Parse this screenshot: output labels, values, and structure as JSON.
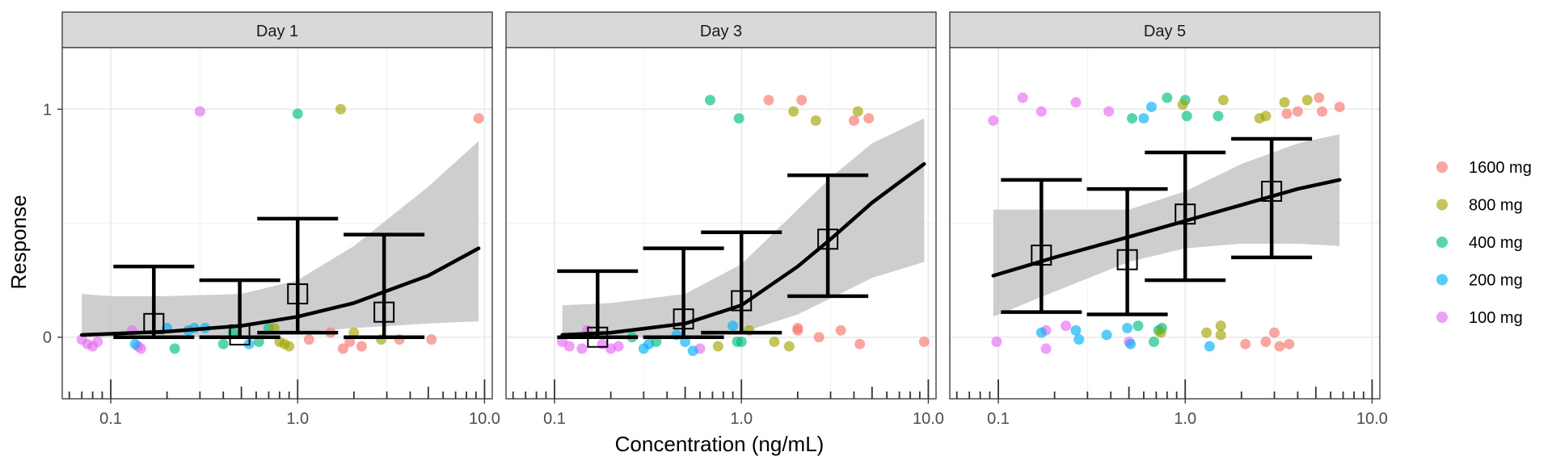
{
  "chart_data": {
    "type": "scatter",
    "xlabel": "Concentration (ng/mL)",
    "ylabel": "Response",
    "x_scale": "log10",
    "xlim": [
      0.055,
      11
    ],
    "ylim": [
      -0.27,
      1.27
    ],
    "x_ticks": [
      {
        "value": 0.1,
        "label": "0.1"
      },
      {
        "value": 1,
        "label": "1.0"
      },
      {
        "value": 10,
        "label": "10.0"
      }
    ],
    "y_ticks": [
      {
        "value": 0,
        "label": "0"
      },
      {
        "value": 1,
        "label": "1"
      }
    ],
    "grid": true,
    "legend_position": "right",
    "legend": [
      {
        "name": "1600 mg",
        "color": "#F8766D"
      },
      {
        "name": "800 mg",
        "color": "#A3A500"
      },
      {
        "name": "400 mg",
        "color": "#00BF7D"
      },
      {
        "name": "200 mg",
        "color": "#00B0F6"
      },
      {
        "name": "100 mg",
        "color": "#E76BF3"
      }
    ],
    "panels": [
      {
        "title": "Day 1",
        "points": [
          {
            "x": 0.07,
            "y": -0.01,
            "dose": "100 mg"
          },
          {
            "x": 0.075,
            "y": -0.03,
            "dose": "100 mg"
          },
          {
            "x": 0.08,
            "y": -0.04,
            "dose": "100 mg"
          },
          {
            "x": 0.085,
            "y": -0.02,
            "dose": "100 mg"
          },
          {
            "x": 0.13,
            "y": 0.03,
            "dose": "100 mg"
          },
          {
            "x": 0.14,
            "y": -0.04,
            "dose": "100 mg"
          },
          {
            "x": 0.145,
            "y": -0.05,
            "dose": "100 mg"
          },
          {
            "x": 0.3,
            "y": 0.99,
            "dose": "100 mg"
          },
          {
            "x": 0.135,
            "y": -0.03,
            "dose": "200 mg"
          },
          {
            "x": 0.2,
            "y": 0.04,
            "dose": "200 mg"
          },
          {
            "x": 0.26,
            "y": 0.03,
            "dose": "200 mg"
          },
          {
            "x": 0.28,
            "y": 0.04,
            "dose": "200 mg"
          },
          {
            "x": 0.32,
            "y": 0.04,
            "dose": "200 mg"
          },
          {
            "x": 0.55,
            "y": -0.03,
            "dose": "200 mg"
          },
          {
            "x": 0.22,
            "y": -0.05,
            "dose": "400 mg"
          },
          {
            "x": 0.4,
            "y": -0.03,
            "dose": "400 mg"
          },
          {
            "x": 0.45,
            "y": 0.02,
            "dose": "400 mg"
          },
          {
            "x": 0.62,
            "y": -0.02,
            "dose": "400 mg"
          },
          {
            "x": 0.7,
            "y": 0.04,
            "dose": "400 mg"
          },
          {
            "x": 1.0,
            "y": 0.98,
            "dose": "400 mg"
          },
          {
            "x": 0.75,
            "y": 0.04,
            "dose": "800 mg"
          },
          {
            "x": 0.8,
            "y": -0.02,
            "dose": "800 mg"
          },
          {
            "x": 0.85,
            "y": -0.03,
            "dose": "800 mg"
          },
          {
            "x": 0.9,
            "y": -0.04,
            "dose": "800 mg"
          },
          {
            "x": 1.7,
            "y": 1.0,
            "dose": "800 mg"
          },
          {
            "x": 2.0,
            "y": 0.02,
            "dose": "800 mg"
          },
          {
            "x": 2.8,
            "y": -0.01,
            "dose": "800 mg"
          },
          {
            "x": 1.5,
            "y": 0.02,
            "dose": "1600 mg"
          },
          {
            "x": 1.75,
            "y": -0.05,
            "dose": "1600 mg"
          },
          {
            "x": 1.9,
            "y": -0.02,
            "dose": "1600 mg"
          },
          {
            "x": 2.2,
            "y": -0.04,
            "dose": "1600 mg"
          },
          {
            "x": 1.15,
            "y": -0.01,
            "dose": "1600 mg"
          },
          {
            "x": 3.5,
            "y": -0.01,
            "dose": "1600 mg"
          },
          {
            "x": 5.2,
            "y": -0.01,
            "dose": "1600 mg"
          },
          {
            "x": 9.3,
            "y": 0.96,
            "dose": "1600 mg"
          }
        ],
        "summary": [
          {
            "x": 0.17,
            "mean": 0.06,
            "lower": 0.0,
            "upper": 0.31
          },
          {
            "x": 0.49,
            "mean": 0.01,
            "lower": 0.0,
            "upper": 0.25
          },
          {
            "x": 1.0,
            "mean": 0.19,
            "lower": 0.02,
            "upper": 0.52
          },
          {
            "x": 2.9,
            "mean": 0.11,
            "lower": 0.0,
            "upper": 0.45
          }
        ],
        "fit": {
          "x": [
            0.07,
            0.1,
            0.2,
            0.5,
            1,
            2,
            5,
            9.3
          ],
          "y": [
            0.01,
            0.015,
            0.025,
            0.05,
            0.09,
            0.15,
            0.27,
            0.39
          ],
          "lower": [
            0.0,
            0.0,
            0.0,
            0.0,
            0.02,
            0.04,
            0.06,
            0.07
          ],
          "upper": [
            0.19,
            0.18,
            0.18,
            0.19,
            0.25,
            0.4,
            0.66,
            0.86
          ]
        }
      },
      {
        "title": "Day 3",
        "points": [
          {
            "x": 0.11,
            "y": -0.02,
            "dose": "100 mg"
          },
          {
            "x": 0.12,
            "y": -0.04,
            "dose": "100 mg"
          },
          {
            "x": 0.14,
            "y": -0.05,
            "dose": "100 mg"
          },
          {
            "x": 0.15,
            "y": 0.03,
            "dose": "100 mg"
          },
          {
            "x": 0.18,
            "y": -0.03,
            "dose": "100 mg"
          },
          {
            "x": 0.2,
            "y": -0.05,
            "dose": "100 mg"
          },
          {
            "x": 0.22,
            "y": -0.04,
            "dose": "100 mg"
          },
          {
            "x": 0.6,
            "y": -0.05,
            "dose": "100 mg"
          },
          {
            "x": 0.3,
            "y": -0.05,
            "dose": "200 mg"
          },
          {
            "x": 0.32,
            "y": -0.03,
            "dose": "200 mg"
          },
          {
            "x": 0.45,
            "y": 0.01,
            "dose": "200 mg"
          },
          {
            "x": 0.5,
            "y": -0.02,
            "dose": "200 mg"
          },
          {
            "x": 0.55,
            "y": -0.06,
            "dose": "200 mg"
          },
          {
            "x": 0.9,
            "y": 0.05,
            "dose": "200 mg"
          },
          {
            "x": 0.26,
            "y": 0.0,
            "dose": "400 mg"
          },
          {
            "x": 0.35,
            "y": -0.02,
            "dose": "400 mg"
          },
          {
            "x": 0.68,
            "y": 1.04,
            "dose": "400 mg"
          },
          {
            "x": 0.95,
            "y": -0.02,
            "dose": "400 mg"
          },
          {
            "x": 1.0,
            "y": -0.02,
            "dose": "400 mg"
          },
          {
            "x": 0.97,
            "y": 0.96,
            "dose": "400 mg"
          },
          {
            "x": 0.75,
            "y": -0.04,
            "dose": "800 mg"
          },
          {
            "x": 1.1,
            "y": 0.03,
            "dose": "800 mg"
          },
          {
            "x": 1.5,
            "y": -0.02,
            "dose": "800 mg"
          },
          {
            "x": 1.8,
            "y": -0.04,
            "dose": "800 mg"
          },
          {
            "x": 1.9,
            "y": 0.99,
            "dose": "800 mg"
          },
          {
            "x": 2.5,
            "y": 0.95,
            "dose": "800 mg"
          },
          {
            "x": 4.2,
            "y": 0.99,
            "dose": "800 mg"
          },
          {
            "x": 1.4,
            "y": 1.04,
            "dose": "1600 mg"
          },
          {
            "x": 2.1,
            "y": 1.04,
            "dose": "1600 mg"
          },
          {
            "x": 2.0,
            "y": 0.04,
            "dose": "1600 mg"
          },
          {
            "x": 2.0,
            "y": 0.03,
            "dose": "1600 mg"
          },
          {
            "x": 2.6,
            "y": 0.0,
            "dose": "1600 mg"
          },
          {
            "x": 3.4,
            "y": 0.03,
            "dose": "1600 mg"
          },
          {
            "x": 4.0,
            "y": 0.95,
            "dose": "1600 mg"
          },
          {
            "x": 4.8,
            "y": 0.96,
            "dose": "1600 mg"
          },
          {
            "x": 4.3,
            "y": -0.03,
            "dose": "1600 mg"
          },
          {
            "x": 9.5,
            "y": -0.02,
            "dose": "1600 mg"
          }
        ],
        "summary": [
          {
            "x": 0.17,
            "mean": 0.0,
            "lower": 0.0,
            "upper": 0.29
          },
          {
            "x": 0.49,
            "mean": 0.08,
            "lower": 0.0,
            "upper": 0.39
          },
          {
            "x": 1.0,
            "mean": 0.16,
            "lower": 0.02,
            "upper": 0.46
          },
          {
            "x": 2.9,
            "mean": 0.43,
            "lower": 0.18,
            "upper": 0.71
          }
        ],
        "fit": {
          "x": [
            0.11,
            0.2,
            0.5,
            1,
            2,
            3,
            5,
            9.5
          ],
          "y": [
            0.01,
            0.02,
            0.06,
            0.14,
            0.31,
            0.43,
            0.59,
            0.76
          ],
          "lower": [
            0.0,
            0.0,
            0.0,
            0.02,
            0.1,
            0.17,
            0.26,
            0.33
          ],
          "upper": [
            0.14,
            0.15,
            0.19,
            0.32,
            0.56,
            0.7,
            0.85,
            0.96
          ]
        }
      },
      {
        "title": "Day 5",
        "points": [
          {
            "x": 0.094,
            "y": 0.95,
            "dose": "100 mg"
          },
          {
            "x": 0.135,
            "y": 1.05,
            "dose": "100 mg"
          },
          {
            "x": 0.17,
            "y": 0.99,
            "dose": "100 mg"
          },
          {
            "x": 0.26,
            "y": 1.03,
            "dose": "100 mg"
          },
          {
            "x": 0.39,
            "y": 0.99,
            "dose": "100 mg"
          },
          {
            "x": 0.098,
            "y": -0.02,
            "dose": "100 mg"
          },
          {
            "x": 0.18,
            "y": 0.03,
            "dose": "100 mg"
          },
          {
            "x": 0.18,
            "y": -0.05,
            "dose": "100 mg"
          },
          {
            "x": 0.23,
            "y": 0.05,
            "dose": "100 mg"
          },
          {
            "x": 0.5,
            "y": -0.02,
            "dose": "100 mg"
          },
          {
            "x": 0.17,
            "y": 0.02,
            "dose": "200 mg"
          },
          {
            "x": 0.26,
            "y": 0.03,
            "dose": "200 mg"
          },
          {
            "x": 0.27,
            "y": -0.01,
            "dose": "200 mg"
          },
          {
            "x": 0.38,
            "y": 0.01,
            "dose": "200 mg"
          },
          {
            "x": 0.49,
            "y": 0.04,
            "dose": "200 mg"
          },
          {
            "x": 0.51,
            "y": -0.03,
            "dose": "200 mg"
          },
          {
            "x": 0.6,
            "y": 0.96,
            "dose": "200 mg"
          },
          {
            "x": 0.66,
            "y": 1.01,
            "dose": "200 mg"
          },
          {
            "x": 1.35,
            "y": -0.04,
            "dose": "200 mg"
          },
          {
            "x": 0.52,
            "y": 0.96,
            "dose": "400 mg"
          },
          {
            "x": 0.56,
            "y": 0.05,
            "dose": "400 mg"
          },
          {
            "x": 0.68,
            "y": -0.02,
            "dose": "400 mg"
          },
          {
            "x": 0.72,
            "y": 0.03,
            "dose": "400 mg"
          },
          {
            "x": 0.75,
            "y": 0.04,
            "dose": "400 mg"
          },
          {
            "x": 0.8,
            "y": 1.05,
            "dose": "400 mg"
          },
          {
            "x": 1.0,
            "y": 1.04,
            "dose": "400 mg"
          },
          {
            "x": 1.02,
            "y": 0.97,
            "dose": "400 mg"
          },
          {
            "x": 1.5,
            "y": 0.97,
            "dose": "400 mg"
          },
          {
            "x": 0.74,
            "y": 0.02,
            "dose": "800 mg"
          },
          {
            "x": 0.97,
            "y": 1.02,
            "dose": "800 mg"
          },
          {
            "x": 1.3,
            "y": 0.02,
            "dose": "800 mg"
          },
          {
            "x": 1.55,
            "y": 0.05,
            "dose": "800 mg"
          },
          {
            "x": 1.6,
            "y": 1.04,
            "dose": "800 mg"
          },
          {
            "x": 1.55,
            "y": 0.01,
            "dose": "800 mg"
          },
          {
            "x": 2.5,
            "y": 0.96,
            "dose": "800 mg"
          },
          {
            "x": 2.7,
            "y": 0.97,
            "dose": "800 mg"
          },
          {
            "x": 3.4,
            "y": 1.03,
            "dose": "800 mg"
          },
          {
            "x": 4.5,
            "y": 1.04,
            "dose": "800 mg"
          },
          {
            "x": 2.1,
            "y": -0.03,
            "dose": "1600 mg"
          },
          {
            "x": 2.7,
            "y": -0.02,
            "dose": "1600 mg"
          },
          {
            "x": 3.0,
            "y": 0.02,
            "dose": "1600 mg"
          },
          {
            "x": 3.2,
            "y": -0.04,
            "dose": "1600 mg"
          },
          {
            "x": 3.6,
            "y": -0.03,
            "dose": "1600 mg"
          },
          {
            "x": 3.5,
            "y": 0.98,
            "dose": "1600 mg"
          },
          {
            "x": 4.0,
            "y": 0.99,
            "dose": "1600 mg"
          },
          {
            "x": 5.2,
            "y": 1.05,
            "dose": "1600 mg"
          },
          {
            "x": 5.4,
            "y": 0.99,
            "dose": "1600 mg"
          },
          {
            "x": 6.7,
            "y": 1.01,
            "dose": "1600 mg"
          }
        ],
        "summary": [
          {
            "x": 0.17,
            "mean": 0.36,
            "lower": 0.11,
            "upper": 0.69
          },
          {
            "x": 0.49,
            "mean": 0.34,
            "lower": 0.1,
            "upper": 0.65
          },
          {
            "x": 1.0,
            "mean": 0.54,
            "lower": 0.25,
            "upper": 0.81
          },
          {
            "x": 2.9,
            "mean": 0.64,
            "lower": 0.35,
            "upper": 0.87
          }
        ],
        "fit": {
          "x": [
            0.094,
            0.2,
            0.5,
            1,
            2,
            4,
            6.7
          ],
          "y": [
            0.27,
            0.35,
            0.44,
            0.51,
            0.58,
            0.65,
            0.69
          ],
          "lower": [
            0.09,
            0.2,
            0.33,
            0.39,
            0.41,
            0.41,
            0.4
          ],
          "upper": [
            0.56,
            0.56,
            0.56,
            0.64,
            0.76,
            0.85,
            0.89
          ]
        }
      }
    ]
  }
}
